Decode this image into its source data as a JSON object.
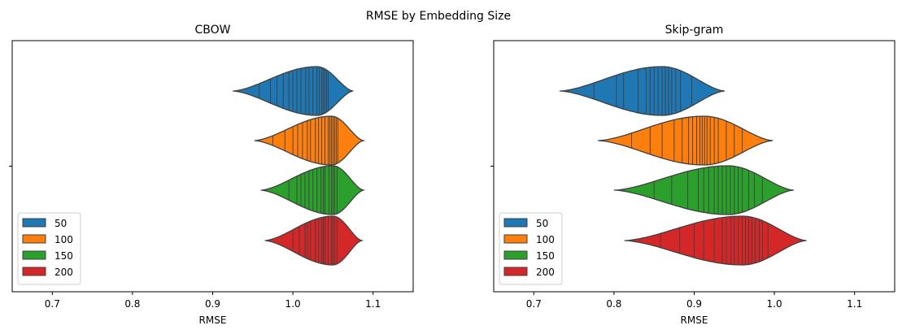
{
  "figure": {
    "title": "RMSE by Embedding Size"
  },
  "legend": {
    "entries": [
      "50",
      "100",
      "150",
      "200"
    ]
  },
  "chart_data": [
    {
      "type": "violin",
      "title": "CBOW",
      "xlabel": "RMSE",
      "xlim": [
        0.65,
        1.15
      ],
      "xticks": [
        "0.7",
        "0.8",
        "0.9",
        "1.0",
        "1.1"
      ],
      "xtick_values": [
        0.7,
        0.8,
        0.9,
        1.0,
        1.1
      ],
      "legend_position": "lower-left",
      "series": [
        {
          "name": "50",
          "color": "#1f77b4",
          "min": 0.925,
          "max": 1.075,
          "mode": 1.03,
          "samples": [
            0.958,
            0.972,
            0.98,
            0.988,
            0.995,
            1.0,
            1.005,
            1.01,
            1.016,
            1.02,
            1.025,
            1.03,
            1.033,
            1.036,
            1.038,
            1.04,
            1.042,
            1.044
          ]
        },
        {
          "name": "100",
          "color": "#ff7f0e",
          "min": 0.952,
          "max": 1.088,
          "mode": 1.048,
          "samples": [
            0.975,
            0.99,
            1.0,
            1.006,
            1.012,
            1.018,
            1.022,
            1.028,
            1.032,
            1.036,
            1.04,
            1.044,
            1.046,
            1.048,
            1.05,
            1.052,
            1.054,
            1.056
          ]
        },
        {
          "name": "150",
          "color": "#2ca02c",
          "min": 0.96,
          "max": 1.088,
          "mode": 1.05,
          "samples": [
            0.995,
            1.005,
            1.01,
            1.015,
            1.02,
            1.025,
            1.03,
            1.035,
            1.038,
            1.04,
            1.045,
            1.048,
            1.05,
            1.052,
            1.055
          ]
        },
        {
          "name": "200",
          "color": "#d62728",
          "min": 0.965,
          "max": 1.086,
          "mode": 1.05,
          "samples": [
            1.0,
            1.008,
            1.015,
            1.018,
            1.022,
            1.028,
            1.032,
            1.036,
            1.038,
            1.04,
            1.044,
            1.048,
            1.05,
            1.052,
            1.055
          ]
        }
      ]
    },
    {
      "type": "violin",
      "title": "Skip-gram",
      "xlabel": "RMSE",
      "xlim": [
        0.65,
        1.15
      ],
      "xticks": [
        "0.7",
        "0.8",
        "0.9",
        "1.0",
        "1.1"
      ],
      "xtick_values": [
        0.7,
        0.8,
        0.9,
        1.0,
        1.1
      ],
      "legend_position": "lower-left",
      "series": [
        {
          "name": "50",
          "color": "#1f77b4",
          "min": 0.732,
          "max": 0.938,
          "mode": 0.86,
          "samples": [
            0.775,
            0.803,
            0.812,
            0.83,
            0.84,
            0.845,
            0.85,
            0.855,
            0.86,
            0.864,
            0.868,
            0.872,
            0.877,
            0.883,
            0.897
          ]
        },
        {
          "name": "100",
          "color": "#ff7f0e",
          "min": 0.78,
          "max": 0.998,
          "mode": 0.912,
          "samples": [
            0.822,
            0.845,
            0.86,
            0.875,
            0.885,
            0.893,
            0.898,
            0.903,
            0.907,
            0.91,
            0.913,
            0.916,
            0.92,
            0.925,
            0.93,
            0.94,
            0.95,
            0.96
          ]
        },
        {
          "name": "150",
          "color": "#2ca02c",
          "min": 0.8,
          "max": 1.024,
          "mode": 0.942,
          "samples": [
            0.85,
            0.872,
            0.892,
            0.905,
            0.912,
            0.918,
            0.925,
            0.93,
            0.935,
            0.94,
            0.945,
            0.95,
            0.955,
            0.96,
            0.968,
            0.975,
            0.985
          ]
        },
        {
          "name": "200",
          "color": "#d62728",
          "min": 0.813,
          "max": 1.04,
          "mode": 0.96,
          "samples": [
            0.858,
            0.882,
            0.9,
            0.912,
            0.925,
            0.935,
            0.94,
            0.946,
            0.95,
            0.955,
            0.96,
            0.964,
            0.968,
            0.972,
            0.976,
            0.981,
            0.985,
            0.992
          ]
        }
      ]
    }
  ]
}
